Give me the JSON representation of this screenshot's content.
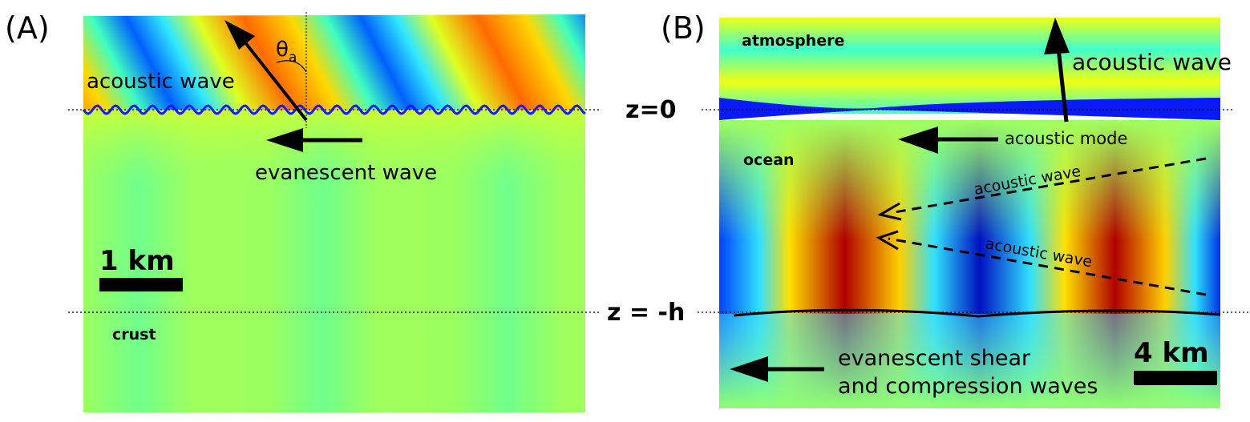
{
  "panel_a": {
    "label": "(A)",
    "acoustic_wave": "acoustic wave",
    "angle_symbol": "θ",
    "angle_subscript": "a",
    "evanescent_wave": "evanescent wave",
    "scale": "1 km",
    "crust": "crust"
  },
  "panel_b": {
    "label": "(B)",
    "atmosphere": "atmosphere",
    "acoustic_wave_top": "acoustic wave",
    "z0": "z=0",
    "acoustic_mode": "acoustic mode",
    "ocean": "ocean",
    "acoustic_wave_1": "acoustic wave",
    "acoustic_wave_2": "acoustic wave",
    "zh": "z = -h",
    "evanescent_line1": "evanescent shear",
    "evanescent_line2": "and compression waves",
    "scale": "4 km"
  }
}
